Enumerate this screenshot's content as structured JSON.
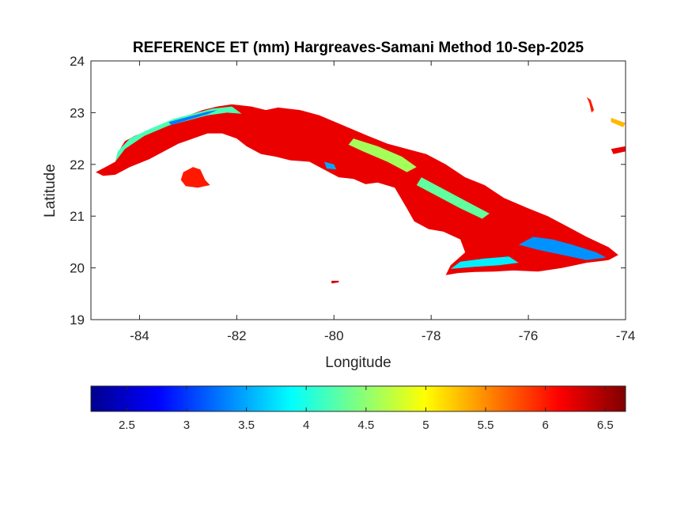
{
  "title": "REFERENCE ET (mm) Hargreaves-Samani Method  10-Sep-2025",
  "chart_data": {
    "type": "heatmap",
    "title": "REFERENCE ET (mm) Hargreaves-Samani Method  10-Sep-2025",
    "xlabel": "Longitude",
    "ylabel": "Latitude",
    "xlim": [
      -85,
      -74
    ],
    "ylim": [
      19,
      24
    ],
    "x_ticks": [
      -84,
      -82,
      -80,
      -78,
      -76,
      -74
    ],
    "y_ticks": [
      19,
      20,
      21,
      22,
      23,
      24
    ],
    "x_tick_labels": [
      "-84",
      "-82",
      "-80",
      "-78",
      "-76",
      "-74"
    ],
    "y_tick_labels": [
      "19",
      "20",
      "21",
      "22",
      "23",
      "24"
    ],
    "grid": false,
    "colormap": "jet",
    "colorbar": {
      "orientation": "horizontal",
      "placement": "bottom",
      "range": [
        2.2,
        6.67
      ],
      "ticks": [
        2.5,
        3,
        3.5,
        4,
        4.5,
        5,
        5.5,
        6,
        6.5
      ],
      "tick_labels": [
        "2.5",
        "3",
        "3.5",
        "4",
        "4.5",
        "5",
        "5.5",
        "6",
        "6.5"
      ]
    },
    "regions": [
      {
        "name": "western-island",
        "value": 6.2,
        "lonlat": [
          [
            -84.9,
            21.85
          ],
          [
            -84.7,
            21.95
          ],
          [
            -84.5,
            22.05
          ],
          [
            -84.4,
            22.3
          ],
          [
            -84.3,
            22.45
          ],
          [
            -84.1,
            22.55
          ],
          [
            -83.7,
            22.7
          ],
          [
            -83.3,
            22.85
          ],
          [
            -83.0,
            22.95
          ],
          [
            -82.7,
            23.05
          ],
          [
            -82.4,
            23.12
          ],
          [
            -82.1,
            23.16
          ],
          [
            -81.7,
            23.12
          ],
          [
            -81.4,
            23.05
          ],
          [
            -81.15,
            23.1
          ],
          [
            -80.7,
            23.05
          ],
          [
            -80.3,
            22.95
          ],
          [
            -79.8,
            22.75
          ],
          [
            -79.3,
            22.55
          ],
          [
            -78.9,
            22.4
          ],
          [
            -78.5,
            22.3
          ],
          [
            -78.1,
            22.2
          ],
          [
            -77.7,
            22.0
          ],
          [
            -77.3,
            21.75
          ],
          [
            -76.9,
            21.6
          ],
          [
            -76.5,
            21.35
          ],
          [
            -76.0,
            21.15
          ],
          [
            -75.6,
            21.0
          ],
          [
            -75.2,
            20.8
          ],
          [
            -74.8,
            20.6
          ],
          [
            -74.35,
            20.4
          ],
          [
            -74.15,
            20.25
          ],
          [
            -74.35,
            20.15
          ],
          [
            -74.8,
            20.1
          ],
          [
            -75.3,
            20.0
          ],
          [
            -75.8,
            19.93
          ],
          [
            -76.3,
            19.95
          ],
          [
            -76.7,
            19.93
          ],
          [
            -77.1,
            19.92
          ],
          [
            -77.45,
            19.9
          ],
          [
            -77.7,
            19.86
          ],
          [
            -77.6,
            20.05
          ],
          [
            -77.3,
            20.3
          ],
          [
            -77.4,
            20.55
          ],
          [
            -77.75,
            20.7
          ],
          [
            -78.05,
            20.75
          ],
          [
            -78.35,
            20.9
          ],
          [
            -78.5,
            21.15
          ],
          [
            -78.75,
            21.55
          ],
          [
            -79.1,
            21.65
          ],
          [
            -79.35,
            21.62
          ],
          [
            -79.6,
            21.72
          ],
          [
            -79.9,
            21.75
          ],
          [
            -80.3,
            21.95
          ],
          [
            -80.5,
            22.05
          ],
          [
            -80.9,
            22.08
          ],
          [
            -81.2,
            22.15
          ],
          [
            -81.5,
            22.2
          ],
          [
            -81.8,
            22.35
          ],
          [
            -82.0,
            22.5
          ],
          [
            -82.3,
            22.6
          ],
          [
            -82.6,
            22.6
          ],
          [
            -82.9,
            22.5
          ],
          [
            -83.2,
            22.4
          ],
          [
            -83.5,
            22.25
          ],
          [
            -83.8,
            22.1
          ],
          [
            -84.2,
            21.95
          ],
          [
            -84.5,
            21.8
          ],
          [
            -84.75,
            21.78
          ]
        ]
      },
      {
        "name": "isla-de-la-juventud",
        "value": 6.0,
        "lonlat": [
          [
            -83.1,
            21.85
          ],
          [
            -82.9,
            21.95
          ],
          [
            -82.75,
            21.9
          ],
          [
            -82.65,
            21.7
          ],
          [
            -82.55,
            21.6
          ],
          [
            -82.8,
            21.55
          ],
          [
            -83.05,
            21.58
          ],
          [
            -83.15,
            21.7
          ]
        ]
      },
      {
        "name": "northwest-coast-cool-band",
        "value": 4.2,
        "lonlat": [
          [
            -84.5,
            22.05
          ],
          [
            -84.3,
            22.3
          ],
          [
            -83.9,
            22.55
          ],
          [
            -83.4,
            22.75
          ],
          [
            -83.0,
            22.85
          ],
          [
            -82.6,
            22.95
          ],
          [
            -82.2,
            23.0
          ],
          [
            -81.9,
            22.98
          ],
          [
            -82.1,
            23.12
          ],
          [
            -82.5,
            23.08
          ],
          [
            -82.9,
            22.98
          ],
          [
            -83.3,
            22.88
          ],
          [
            -83.8,
            22.68
          ],
          [
            -84.2,
            22.5
          ],
          [
            -84.45,
            22.25
          ]
        ]
      },
      {
        "name": "northwest-coast-coolest",
        "value": 3.3,
        "lonlat": [
          [
            -83.4,
            22.82
          ],
          [
            -83.0,
            22.92
          ],
          [
            -82.6,
            23.02
          ],
          [
            -82.4,
            23.05
          ],
          [
            -82.6,
            22.97
          ],
          [
            -83.0,
            22.86
          ],
          [
            -83.35,
            22.76
          ]
        ]
      },
      {
        "name": "central-north-cool",
        "value": 4.6,
        "lonlat": [
          [
            -79.6,
            22.5
          ],
          [
            -79.1,
            22.35
          ],
          [
            -78.6,
            22.15
          ],
          [
            -78.3,
            21.95
          ],
          [
            -78.5,
            21.85
          ],
          [
            -78.9,
            22.05
          ],
          [
            -79.4,
            22.25
          ],
          [
            -79.7,
            22.38
          ]
        ]
      },
      {
        "name": "central-cool-spot",
        "value": 3.5,
        "lonlat": [
          [
            -80.2,
            22.05
          ],
          [
            -80.0,
            22.0
          ],
          [
            -79.95,
            21.9
          ],
          [
            -80.15,
            21.92
          ]
        ]
      },
      {
        "name": "eastern-central-cool",
        "value": 4.3,
        "lonlat": [
          [
            -78.2,
            21.75
          ],
          [
            -77.7,
            21.5
          ],
          [
            -77.2,
            21.25
          ],
          [
            -76.8,
            21.05
          ],
          [
            -76.95,
            20.95
          ],
          [
            -77.4,
            21.15
          ],
          [
            -77.9,
            21.4
          ],
          [
            -78.3,
            21.6
          ]
        ]
      },
      {
        "name": "eastern-mountains-cool",
        "value": 3.4,
        "lonlat": [
          [
            -75.9,
            20.6
          ],
          [
            -75.5,
            20.55
          ],
          [
            -75.1,
            20.45
          ],
          [
            -74.6,
            20.3
          ],
          [
            -74.4,
            20.2
          ],
          [
            -74.8,
            20.15
          ],
          [
            -75.3,
            20.25
          ],
          [
            -75.8,
            20.35
          ],
          [
            -76.2,
            20.45
          ]
        ]
      },
      {
        "name": "sierra-maestra-cool",
        "value": 3.8,
        "lonlat": [
          [
            -77.6,
            19.98
          ],
          [
            -77.1,
            20.02
          ],
          [
            -76.6,
            20.05
          ],
          [
            -76.2,
            20.1
          ],
          [
            -76.4,
            20.22
          ],
          [
            -76.9,
            20.18
          ],
          [
            -77.4,
            20.12
          ]
        ]
      },
      {
        "name": "cayo-east-1",
        "value": 6.0,
        "lonlat": [
          [
            -74.8,
            23.3
          ],
          [
            -74.75,
            23.2
          ],
          [
            -74.7,
            23.0
          ],
          [
            -74.65,
            23.05
          ],
          [
            -74.72,
            23.25
          ]
        ]
      },
      {
        "name": "cayo-east-2",
        "value": 5.3,
        "lonlat": [
          [
            -74.3,
            22.9
          ],
          [
            -74.0,
            22.8
          ],
          [
            -74.05,
            22.72
          ],
          [
            -74.3,
            22.82
          ]
        ]
      },
      {
        "name": "cayo-east-3",
        "value": 6.2,
        "lonlat": [
          [
            -74.3,
            22.3
          ],
          [
            -74.0,
            22.35
          ],
          [
            -74.0,
            22.25
          ],
          [
            -74.25,
            22.2
          ]
        ]
      },
      {
        "name": "south-small-cay",
        "value": 6.3,
        "lonlat": [
          [
            -80.05,
            19.75
          ],
          [
            -79.9,
            19.75
          ],
          [
            -79.9,
            19.72
          ],
          [
            -80.05,
            19.7
          ]
        ]
      }
    ]
  }
}
